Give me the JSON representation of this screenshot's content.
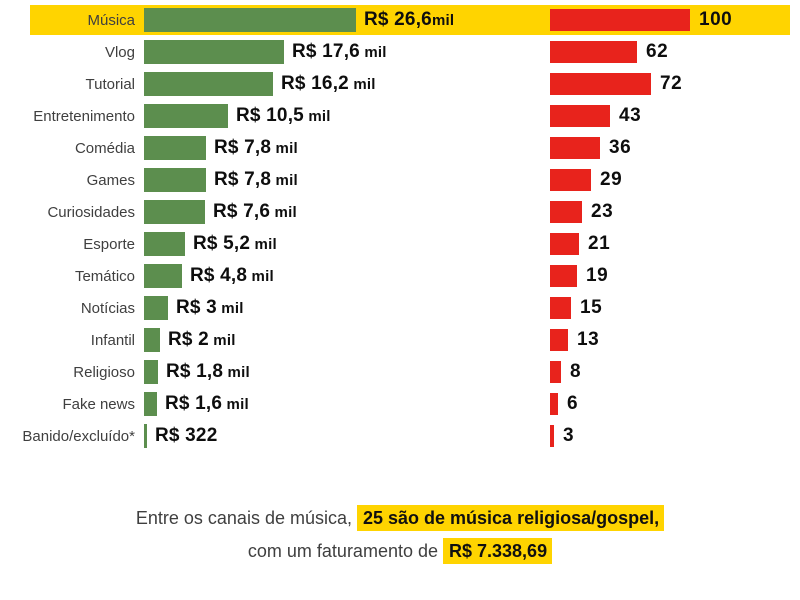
{
  "chart_data": {
    "type": "bar",
    "orientation": "horizontal",
    "grid": false,
    "legend": false,
    "title": "",
    "categories": [
      "Música",
      "Vlog",
      "Tutorial",
      "Entretenimento",
      "Comédia",
      "Games",
      "Curiosidades",
      "Esporte",
      "Temático",
      "Notícias",
      "Infantil",
      "Religioso",
      "Fake news",
      "Banido/excluído*"
    ],
    "highlighted_category": "Música",
    "series": [
      {
        "color": "#5c8e4e",
        "axis_max": 26.6,
        "values": [
          26.6,
          17.6,
          16.2,
          10.5,
          7.8,
          7.8,
          7.6,
          5.2,
          4.8,
          3,
          2,
          1.8,
          1.6,
          0.322
        ],
        "value_labels": [
          {
            "main": "R$ 26,6",
            "suffix": "mil"
          },
          {
            "main": "R$ 17,6",
            "suffix": " mil"
          },
          {
            "main": "R$ 16,2",
            "suffix": " mil"
          },
          {
            "main": "R$ 10,5",
            "suffix": " mil"
          },
          {
            "main": "R$ 7,8",
            "suffix": " mil"
          },
          {
            "main": "R$ 7,8",
            "suffix": " mil"
          },
          {
            "main": "R$ 7,6",
            "suffix": " mil"
          },
          {
            "main": "R$ 5,2",
            "suffix": " mil"
          },
          {
            "main": "R$ 4,8",
            "suffix": " mil"
          },
          {
            "main": "R$ 3",
            "suffix": " mil"
          },
          {
            "main": "R$ 2",
            "suffix": " mil"
          },
          {
            "main": "R$ 1,8",
            "suffix": " mil"
          },
          {
            "main": "R$ 1,6",
            "suffix": " mil"
          },
          {
            "main": "R$ 322",
            "suffix": ""
          }
        ]
      },
      {
        "color": "#e8231c",
        "axis_max": 100,
        "values": [
          100,
          62,
          72,
          43,
          36,
          29,
          23,
          21,
          19,
          15,
          13,
          8,
          6,
          3
        ],
        "value_labels": [
          "100",
          "62",
          "72",
          "43",
          "36",
          "29",
          "23",
          "21",
          "19",
          "15",
          "13",
          "8",
          "6",
          "3"
        ]
      }
    ]
  },
  "footnote": {
    "line1_normal": "Entre os canais de música, ",
    "line1_highlight": "25 são de música religiosa/gospel,",
    "line2_normal": "com um faturamento de ",
    "line2_highlight": "R$ 7.338,69"
  },
  "colors": {
    "green_bar": "#5c8e4e",
    "red_bar": "#e8231c",
    "highlight_yellow": "#ffd400",
    "label_gray": "#3f3f3f",
    "value_black": "#0e0e0e",
    "background": "#ffffff"
  }
}
